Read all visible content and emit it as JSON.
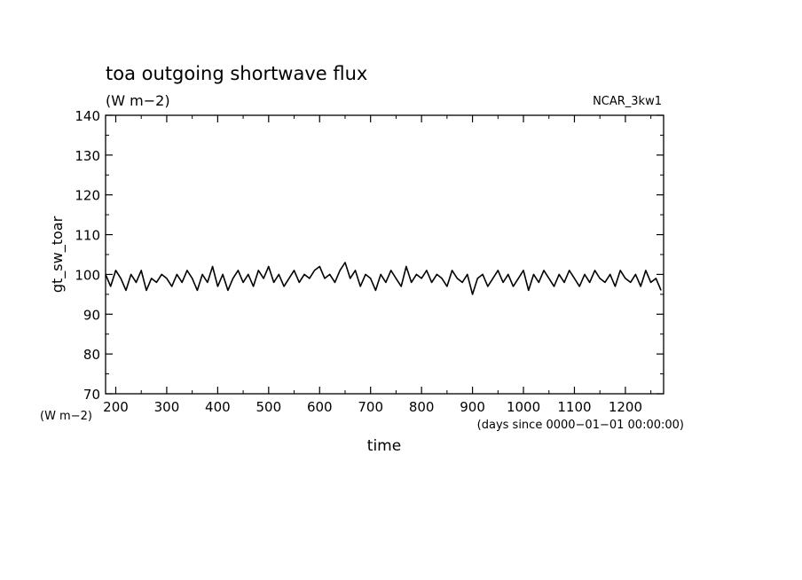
{
  "chart_data": {
    "type": "line",
    "title": "toa outgoing shortwave flux",
    "subtitle": "(W m−2)",
    "source_label": "NCAR_3kw1",
    "ylabel": "gt_sw_toar",
    "yunits": "(W m−2)",
    "xlabel": "time",
    "xunits": "(days since 0000−01−01 00:00:00)",
    "xlim": [
      180,
      1275
    ],
    "ylim": [
      70,
      140
    ],
    "xticks": [
      200,
      300,
      400,
      500,
      600,
      700,
      800,
      900,
      1000,
      1100,
      1200
    ],
    "yticks": [
      70,
      80,
      90,
      100,
      110,
      120,
      130,
      140
    ],
    "grid": false,
    "line_color": "#000000",
    "series": [
      {
        "x": [
          180,
          190,
          200,
          210,
          220,
          230,
          240,
          250,
          260,
          270,
          280,
          290,
          300,
          310,
          320,
          330,
          340,
          350,
          360,
          370,
          380,
          390,
          400,
          410,
          420,
          430,
          440,
          450,
          460,
          470,
          480,
          490,
          500,
          510,
          520,
          530,
          540,
          550,
          560,
          570,
          580,
          590,
          600,
          610,
          620,
          630,
          640,
          650,
          660,
          670,
          680,
          690,
          700,
          710,
          720,
          730,
          740,
          750,
          760,
          770,
          780,
          790,
          800,
          810,
          820,
          830,
          840,
          850,
          860,
          870,
          880,
          890,
          900,
          910,
          920,
          930,
          940,
          950,
          960,
          970,
          980,
          990,
          1000,
          1010,
          1020,
          1030,
          1040,
          1050,
          1060,
          1070,
          1080,
          1090,
          1100,
          1110,
          1120,
          1130,
          1140,
          1150,
          1160,
          1170,
          1180,
          1190,
          1200,
          1210,
          1220,
          1230,
          1240,
          1250,
          1260,
          1270
        ],
        "values": [
          100,
          97,
          101,
          99,
          96,
          100,
          98,
          101,
          96,
          99,
          98,
          100,
          99,
          97,
          100,
          98,
          101,
          99,
          96,
          100,
          98,
          102,
          97,
          100,
          96,
          99,
          101,
          98,
          100,
          97,
          101,
          99,
          102,
          98,
          100,
          97,
          99,
          101,
          98,
          100,
          99,
          101,
          102,
          99,
          100,
          98,
          101,
          103,
          99,
          101,
          97,
          100,
          99,
          96,
          100,
          98,
          101,
          99,
          97,
          102,
          98,
          100,
          99,
          101,
          98,
          100,
          99,
          97,
          101,
          99,
          98,
          100,
          95,
          99,
          100,
          97,
          99,
          101,
          98,
          100,
          97,
          99,
          101,
          96,
          100,
          98,
          101,
          99,
          97,
          100,
          98,
          101,
          99,
          97,
          100,
          98,
          101,
          99,
          98,
          100,
          97,
          101,
          99,
          98,
          100,
          97,
          101,
          98,
          99,
          96
        ]
      }
    ]
  }
}
